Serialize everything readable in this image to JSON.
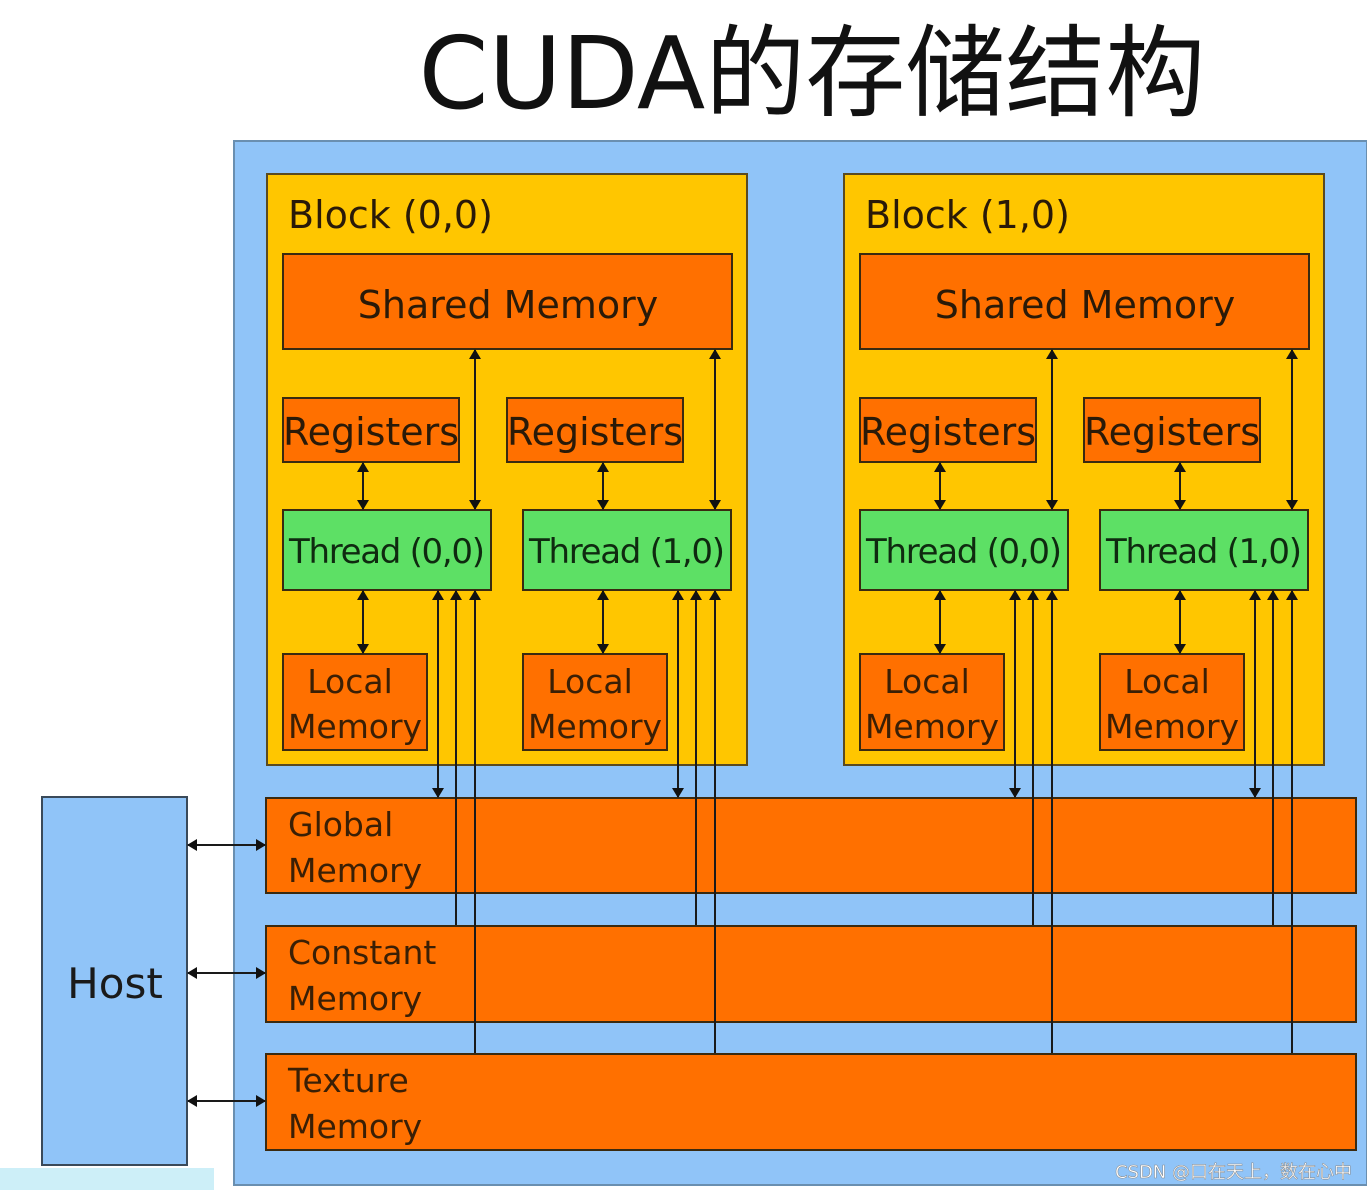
{
  "title": "CUDA的存储结构",
  "colors": {
    "device": "#90c4f8",
    "block": "#ffc600",
    "memory": "#ff7000",
    "thread": "#5de065",
    "host": "#90c4f8"
  },
  "blocks": [
    {
      "label": "Block (0,0)",
      "shared": "Shared Memory",
      "threads": [
        {
          "registers": "Registers",
          "thread": "Thread (0,0)",
          "local1": "Local",
          "local2": "Memory"
        },
        {
          "registers": "Registers",
          "thread": "Thread (1,0)",
          "local1": "Local",
          "local2": "Memory"
        }
      ]
    },
    {
      "label": "Block (1,0)",
      "shared": "Shared Memory",
      "threads": [
        {
          "registers": "Registers",
          "thread": "Thread (0,0)",
          "local1": "Local",
          "local2": "Memory"
        },
        {
          "registers": "Registers",
          "thread": "Thread (1,0)",
          "local1": "Local",
          "local2": "Memory"
        }
      ]
    }
  ],
  "global": {
    "line1": "Global",
    "line2": "Memory"
  },
  "constant": {
    "line1": "Constant",
    "line2": "Memory"
  },
  "texture": {
    "line1": "Texture",
    "line2": "Memory"
  },
  "host": "Host",
  "watermark": "CSDN @口在天上，数在心中"
}
